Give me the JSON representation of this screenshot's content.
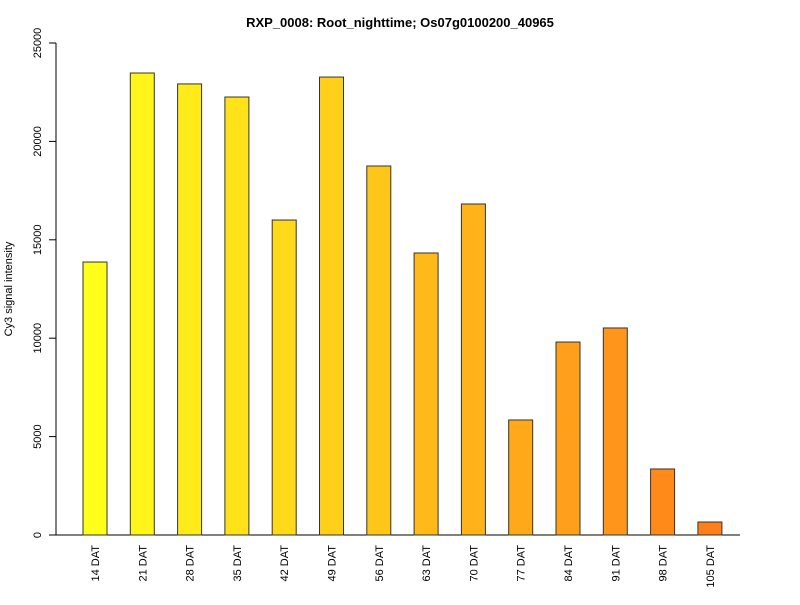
{
  "chart_data": {
    "type": "bar",
    "title": "RXP_0008: Root_nighttime; Os07g0100200_40965",
    "xlabel": "",
    "ylabel": "Cy3 signal intensity",
    "ylim": [
      0,
      25000
    ],
    "yticks": [
      0,
      5000,
      10000,
      15000,
      20000,
      25000
    ],
    "grid": false,
    "categories": [
      "14 DAT",
      "21 DAT",
      "28 DAT",
      "35 DAT",
      "42 DAT",
      "49 DAT",
      "56 DAT",
      "63 DAT",
      "70 DAT",
      "77 DAT",
      "84 DAT",
      "91 DAT",
      "98 DAT",
      "105 DAT"
    ],
    "values": [
      13870,
      23475,
      22920,
      22255,
      16005,
      23270,
      18750,
      14330,
      16820,
      5845,
      9805,
      10520,
      3355,
      660
    ],
    "colors": [
      "#FFFF1A",
      "#FFF51A",
      "#FFEA1A",
      "#FFE21A",
      "#FFD91A",
      "#FFD01A",
      "#FFC61A",
      "#FFBA1A",
      "#FFB21A",
      "#FFA81A",
      "#FF9F1A",
      "#FF951A",
      "#FF8A1A",
      "#FF7F1A"
    ]
  }
}
